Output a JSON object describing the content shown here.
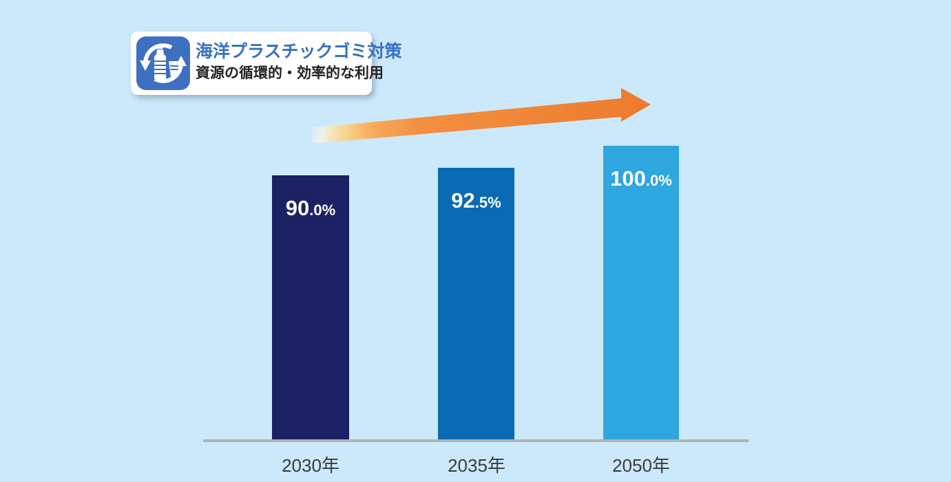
{
  "badge": {
    "title": "海洋プラスチックゴミ対策",
    "subtitle": "資源の循環的・効率的な利用",
    "icon": "recycle-bottle-cup-icon",
    "title_color": "#3570c2",
    "icon_bg": "#3e70c2"
  },
  "chart_data": {
    "type": "bar",
    "categories": [
      "2030年",
      "2035年",
      "2050年"
    ],
    "values": [
      90.0,
      92.5,
      100.0
    ],
    "value_labels": [
      "90.0%",
      "92.5%",
      "100.0%"
    ],
    "bar_colors": [
      "#1b2163",
      "#0b6ab4",
      "#2ea6e0"
    ],
    "title": "",
    "xlabel": "",
    "ylabel": "",
    "ylim": [
      0,
      100
    ],
    "grid": false,
    "legend": false,
    "annotations": [
      "upward-trend-arrow"
    ]
  },
  "arrow": {
    "name": "upward-trend-arrow",
    "stops": [
      "rgba(252,252,245,0.15)",
      "#f0eedc",
      "#f9d489",
      "#f6ab5c",
      "#f38f40",
      "#ee7b2d"
    ]
  },
  "colors": {
    "background": "#cce9fb",
    "baseline": "#b0b3b6",
    "tick_text": "#3a3a3a",
    "value_text": "#ffffff"
  }
}
